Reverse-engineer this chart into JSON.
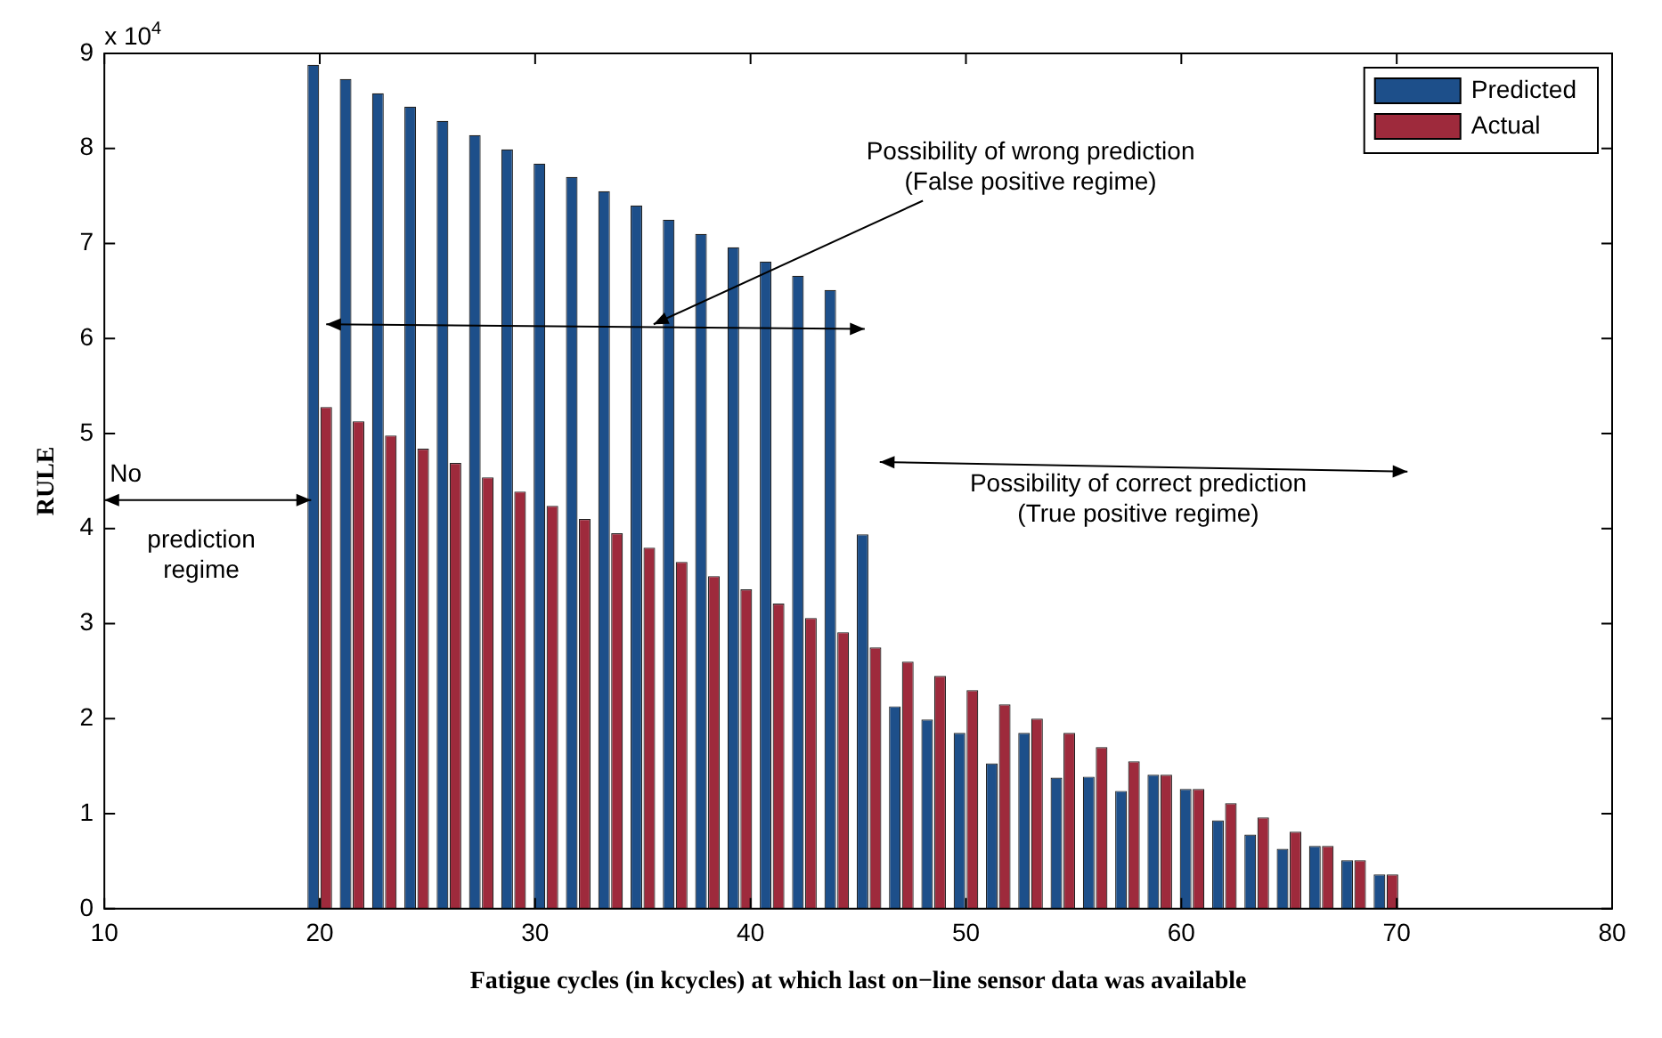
{
  "chart_data": {
    "type": "bar",
    "xlabel": "Fatigue cycles (in kcycles) at which last on−line sensor data was available",
    "ylabel": "RULE",
    "x": [
      20,
      21.5,
      23,
      24.5,
      26,
      27.5,
      29,
      30.5,
      32,
      33.5,
      35,
      36.5,
      38,
      39.5,
      41,
      42.5,
      44,
      45.5,
      47,
      48.5,
      50,
      51.5,
      53,
      54.5,
      56,
      57.5,
      59,
      60.5,
      62,
      63.5,
      65,
      66.5,
      68,
      69.5
    ],
    "series": [
      {
        "name": "Predicted",
        "color": "#1d4f8a",
        "values": [
          8.88,
          8.73,
          8.58,
          8.44,
          8.29,
          8.14,
          7.99,
          7.84,
          7.7,
          7.55,
          7.4,
          7.25,
          7.1,
          6.96,
          6.81,
          6.66,
          6.51,
          3.94,
          2.13,
          1.99,
          1.85,
          1.53,
          1.85,
          1.38,
          1.39,
          1.24,
          1.41,
          1.26,
          0.93,
          0.78,
          0.63,
          0.66,
          0.51,
          0.36
        ]
      },
      {
        "name": "Actual",
        "color": "#9e2a3c",
        "values": [
          5.28,
          5.13,
          4.98,
          4.84,
          4.69,
          4.54,
          4.39,
          4.24,
          4.1,
          3.95,
          3.8,
          3.65,
          3.5,
          3.36,
          3.21,
          3.06,
          2.91,
          2.75,
          2.6,
          2.45,
          2.3,
          2.15,
          2.0,
          1.85,
          1.7,
          1.55,
          1.41,
          1.26,
          1.11,
          0.96,
          0.81,
          0.66,
          0.51,
          0.36
        ]
      }
    ],
    "xlim": [
      10,
      80
    ],
    "xticks": [
      10,
      20,
      30,
      40,
      50,
      60,
      70,
      80
    ],
    "ylim": [
      0,
      9
    ],
    "yticks": [
      0,
      1,
      2,
      3,
      4,
      5,
      6,
      7,
      8,
      9
    ],
    "legend": "top right",
    "annotations": [
      "x 10$^{4}$",
      "No\nprediction\nregime",
      "Possibility of wrong prediction\n(False positive regime)",
      "Possibility of correct prediction\n(True positive regime)"
    ]
  }
}
